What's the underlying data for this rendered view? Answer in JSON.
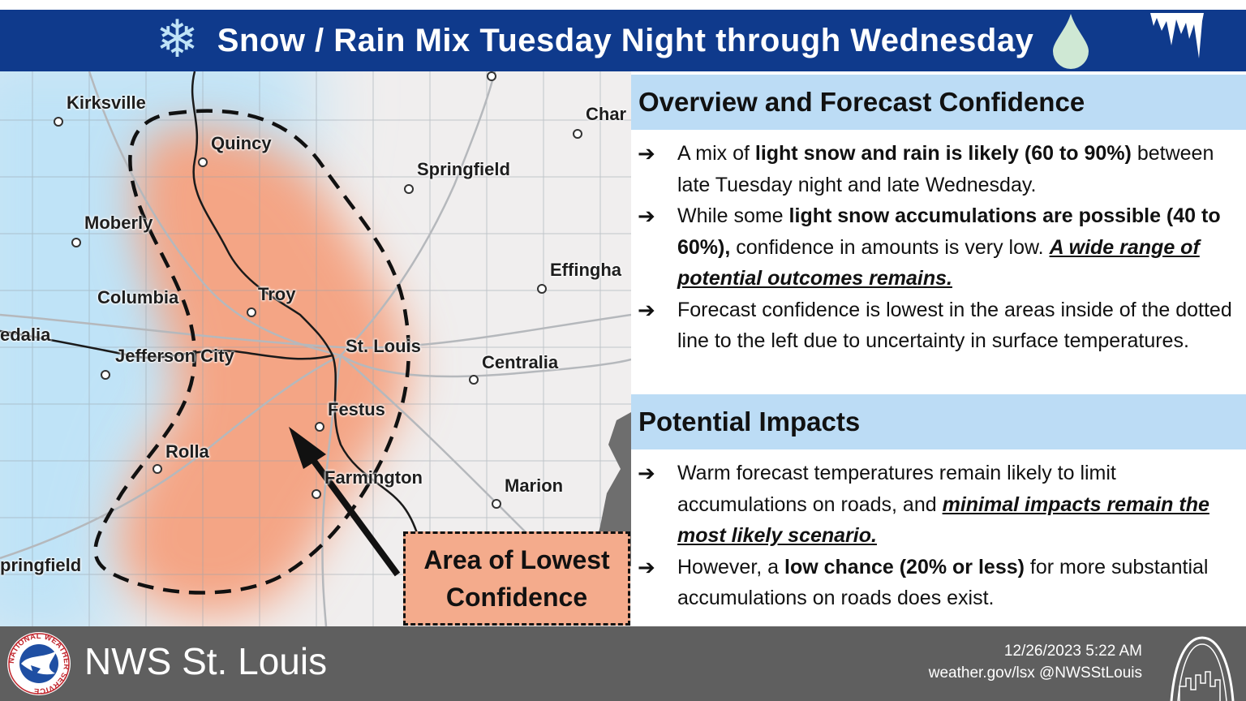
{
  "header": {
    "title": "Snow / Rain Mix Tuesday Night through Wednesday",
    "left_icon": "snowflake-icon",
    "right_icon": "raindrop-icon",
    "corner_icon": "icicle-icon",
    "colors": {
      "bar": "#0f3a8c",
      "snowflake": "#bfe3f7",
      "raindrop": "#cfe8d4"
    }
  },
  "map": {
    "cities": [
      {
        "id": "kirksville",
        "label": "Kirksville"
      },
      {
        "id": "quincy",
        "label": "Quincy"
      },
      {
        "id": "springfield-il",
        "label": "Springfield"
      },
      {
        "id": "charleston",
        "label": "Char"
      },
      {
        "id": "moberly",
        "label": "Moberly"
      },
      {
        "id": "effingham",
        "label": "Effingha"
      },
      {
        "id": "columbia",
        "label": "Columbia"
      },
      {
        "id": "troy",
        "label": "Troy"
      },
      {
        "id": "sedalia",
        "label": "edalia"
      },
      {
        "id": "jefferson-city",
        "label": "Jefferson City"
      },
      {
        "id": "st-louis",
        "label": "St. Louis"
      },
      {
        "id": "centralia",
        "label": "Centralia"
      },
      {
        "id": "festus",
        "label": "Festus"
      },
      {
        "id": "rolla",
        "label": "Rolla"
      },
      {
        "id": "farmington",
        "label": "Farmington"
      },
      {
        "id": "marion",
        "label": "Marion"
      },
      {
        "id": "springfield-mo",
        "label": "pringfield"
      }
    ],
    "callout": {
      "line1": "Area of Lowest",
      "line2": "Confidence"
    },
    "colors": {
      "snow": "#bfe3f7",
      "mix": "#f4ab8c",
      "land": "#f0eeee"
    }
  },
  "overview": {
    "heading": "Overview and Forecast Confidence",
    "b1": {
      "t1": "A mix of ",
      "t2": "light snow and rain is likely (60 to 90%)",
      "t3": " between late Tuesday night and late Wednesday."
    },
    "b2": {
      "t1": "While some ",
      "t2": "light snow accumulations are possible (40 to 60%),",
      "t3": " confidence in amounts is very low. ",
      "t4": "A wide range of potential outcomes remains."
    },
    "b3": {
      "t1": "Forecast confidence is lowest in the areas inside of the dotted line to the left due to uncertainty in surface temperatures."
    }
  },
  "impacts": {
    "heading": "Potential Impacts",
    "b1": {
      "t1": "Warm forecast temperatures remain likely to limit accumulations on roads, and ",
      "t2": "minimal impacts remain the most likely scenario."
    },
    "b2": {
      "t1": "However, a ",
      "t2": "low chance (20% or less)",
      "t3": " for more substantial accumulations on roads does exist."
    }
  },
  "bullet_icon": "arrow-right-icon",
  "footer": {
    "office": "NWS St. Louis",
    "date": "12/26/2023 5:22 AM",
    "web": "weather.gov/lsx @NWSStLouis",
    "logo_icon": "nws-logo",
    "logo_ring_text": "NATIONAL WEATHER SERVICE",
    "right_icon": "gateway-arch-icon",
    "colors": {
      "bar": "#5f5f5f"
    }
  }
}
